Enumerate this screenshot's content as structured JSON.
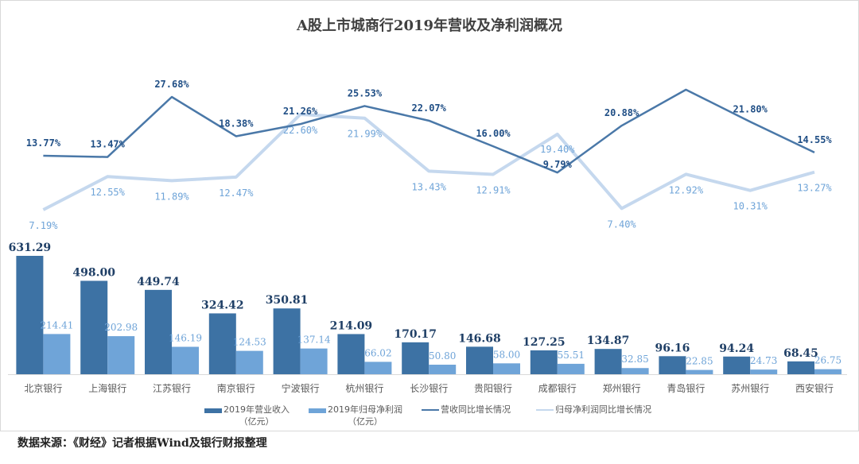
{
  "chart_data": {
    "type": "bar+line",
    "title": "A股上市城商行2019年营收及净利润概况",
    "categories": [
      "北京银行",
      "上海银行",
      "江苏银行",
      "南京银行",
      "宁波银行",
      "杭州银行",
      "长沙银行",
      "贵阳银行",
      "成都银行",
      "郑州银行",
      "青岛银行",
      "苏州银行",
      "西安银行"
    ],
    "series": [
      {
        "name": "2019年营业收入（亿元）",
        "type": "bar",
        "color": "#3d72a4",
        "values": [
          631.29,
          498.0,
          449.74,
          324.42,
          350.81,
          214.09,
          170.17,
          146.68,
          127.25,
          134.87,
          96.16,
          94.24,
          68.45
        ],
        "labels": [
          "631.29",
          "498.00",
          "449.74",
          "324.42",
          "350.81",
          "214.09",
          "170.17",
          "146.68",
          "127.25",
          "134.87",
          "96.16",
          "94.24",
          "68.45"
        ]
      },
      {
        "name": "2019年归母净利润（亿元）",
        "type": "bar",
        "color": "#6fa4d8",
        "values": [
          214.41,
          202.98,
          146.19,
          124.53,
          137.14,
          66.02,
          50.8,
          58.0,
          55.51,
          32.85,
          22.85,
          24.73,
          26.75
        ],
        "labels": [
          "214.41",
          "202.98",
          "146.19",
          "124.53",
          "137.14",
          "66.02",
          "50.80",
          "58.00",
          "55.51",
          "32.85",
          "22.85",
          "24.73",
          "26.75"
        ]
      },
      {
        "name": "营收同比增长情况",
        "type": "line",
        "color": "#4a78a8",
        "values": [
          13.77,
          13.47,
          27.68,
          18.38,
          21.26,
          25.53,
          22.07,
          16.0,
          9.79,
          20.88,
          29.4,
          21.8,
          14.55
        ],
        "labels": [
          "13.77%",
          "13.47%",
          "27.68%",
          "18.38%",
          "21.26%",
          "25.53%",
          "22.07%",
          "16.00%",
          "9.79%",
          "20.88%",
          "",
          "21.80%",
          "14.55%"
        ]
      },
      {
        "name": "归母净利润同比增长情况",
        "type": "line",
        "color": "#c5d8ee",
        "values": [
          7.19,
          12.55,
          11.89,
          12.47,
          22.6,
          21.99,
          13.43,
          12.91,
          19.4,
          7.4,
          12.92,
          10.31,
          13.27
        ],
        "labels": [
          "7.19%",
          "12.55%",
          "11.89%",
          "12.47%",
          "22.60%",
          "21.99%",
          "13.43%",
          "12.91%",
          "19.40%",
          "7.40%",
          "12.92%",
          "10.31%",
          "13.27%"
        ]
      }
    ],
    "legend": "bottom",
    "grid": false
  },
  "legend": {
    "rev_line1": "2019年营业收入",
    "rev_line2": "（亿元）",
    "np_line1": "2019年归母净利润",
    "np_line2": "（亿元）",
    "rev_growth": "营收同比增长情况",
    "np_growth": "归母净利润同比增长情况"
  },
  "source": "数据来源：《财经》记者根据Wind及银行财报整理"
}
